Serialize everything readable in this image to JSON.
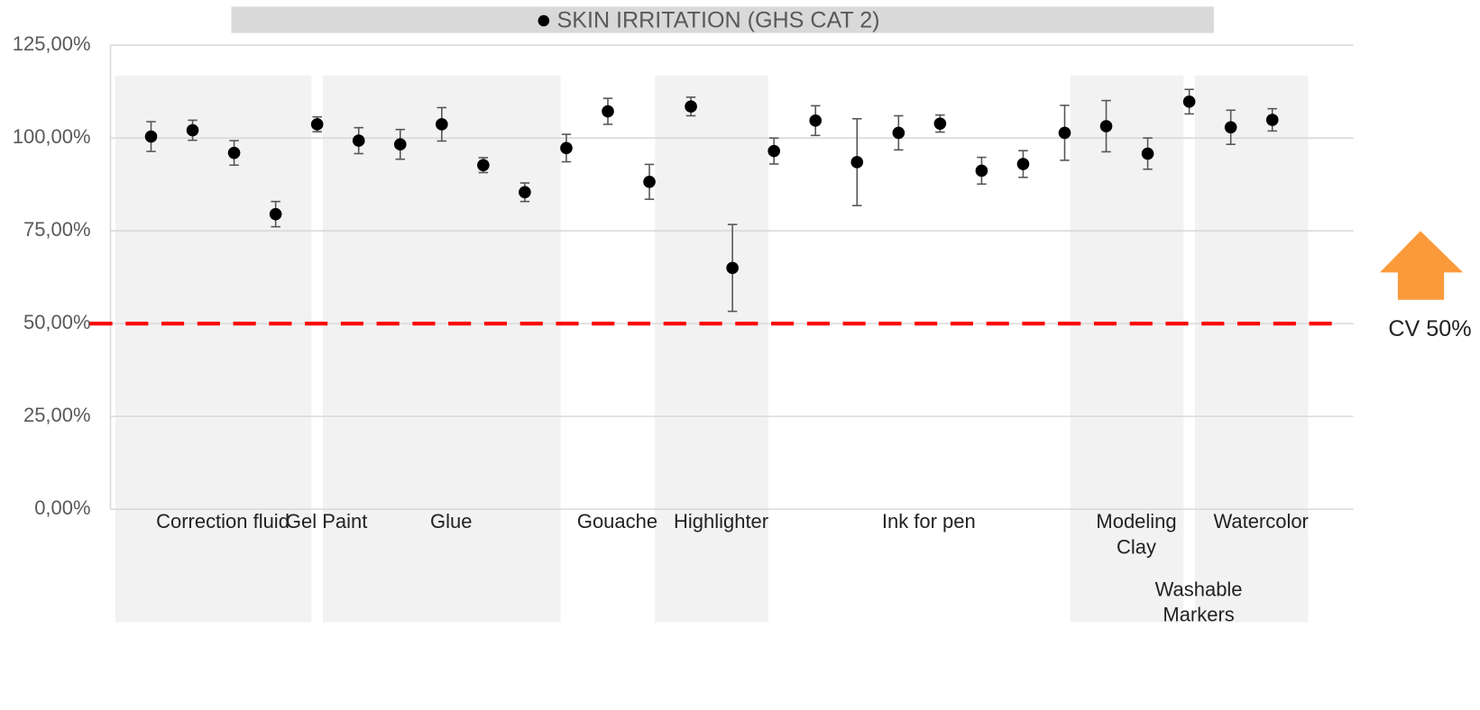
{
  "chart_data": {
    "type": "errorbar",
    "series_name": "SKIN IRRITATION (GHS CAT 2)",
    "color": "#000000",
    "ylim": [
      0,
      125
    ],
    "yticks": [
      {
        "value": 0,
        "label": "0,00%"
      },
      {
        "value": 25,
        "label": "25,00%"
      },
      {
        "value": 50,
        "label": "50,00%"
      },
      {
        "value": 75,
        "label": "75,00%"
      },
      {
        "value": 100,
        "label": "100,00%"
      },
      {
        "value": 125,
        "label": "125,00%"
      }
    ],
    "grid": true,
    "groups": [
      {
        "label": "Correction fluid",
        "values": [
          100.4,
          102.1,
          96.0,
          79.5
        ],
        "errors": [
          4.0,
          2.7,
          3.3,
          3.4
        ]
      },
      {
        "label": "Gel Paint",
        "values": [
          103.7
        ],
        "errors": [
          2.0
        ]
      },
      {
        "label": "Glue",
        "values": [
          99.3,
          98.3,
          103.7,
          92.7,
          85.4
        ],
        "errors": [
          3.5,
          4.0,
          4.5,
          2.0,
          2.5
        ]
      },
      {
        "label": "Gouache",
        "values": [
          97.3,
          107.2,
          88.2
        ],
        "errors": [
          3.7,
          3.5,
          4.7
        ]
      },
      {
        "label": "Highlighter",
        "values": [
          108.5,
          65.0
        ],
        "errors": [
          2.5,
          11.7
        ]
      },
      {
        "label": "Ink for pen",
        "values": [
          96.5,
          104.7,
          93.5,
          101.4,
          103.9,
          91.2,
          93.0,
          101.4
        ],
        "errors": [
          3.5,
          4.0,
          11.7,
          4.6,
          2.3,
          3.6,
          3.6,
          7.4
        ]
      },
      {
        "label": "Modeling Clay",
        "values": [
          103.2,
          95.8
        ],
        "errors": [
          6.9,
          4.2
        ]
      },
      {
        "label": "Washable Markers",
        "values": [
          109.8
        ],
        "errors": [
          3.3
        ]
      },
      {
        "label": "Watercolor",
        "values": [
          102.9,
          104.9
        ],
        "errors": [
          4.6,
          3.0
        ]
      }
    ],
    "reference_line": {
      "value": 50,
      "label": "CV 50%",
      "color": "#ff0000"
    }
  }
}
